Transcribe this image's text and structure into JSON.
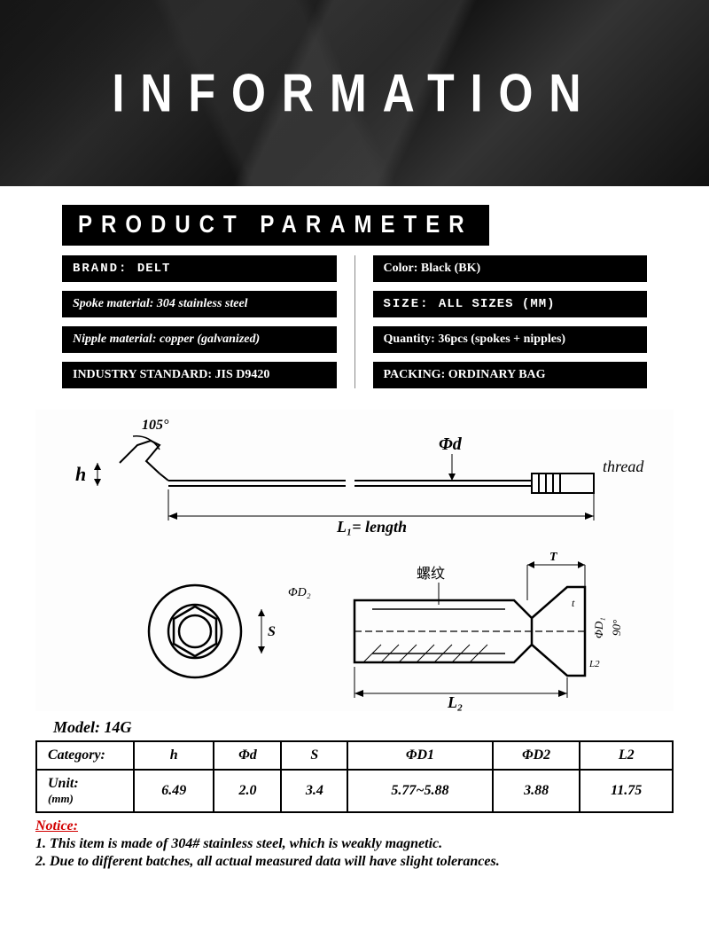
{
  "banner": {
    "title": "INFORMATION"
  },
  "section_title": "PRODUCT PARAMETER",
  "params": {
    "left": [
      {
        "label": "BRAND:",
        "value": "DELT",
        "label_cls": "label-part",
        "val_cls": "val-part"
      },
      {
        "label": "Spoke material:",
        "value": "304 stainless steel",
        "label_cls": "italic",
        "val_cls": "italic"
      },
      {
        "label": "Nipple material:",
        "value": "copper (galvanized)",
        "label_cls": "italic",
        "val_cls": "italic"
      },
      {
        "label": "INDUSTRY STANDARD:",
        "value": "JIS D9420",
        "label_cls": "",
        "val_cls": ""
      }
    ],
    "right": [
      {
        "label": "Color:",
        "value": "Black (BK)",
        "label_cls": "",
        "val_cls": ""
      },
      {
        "label": "SIZE:",
        "value": "ALL SIZES (MM)",
        "label_cls": "label-part",
        "val_cls": "val-part"
      },
      {
        "label": "Quantity:",
        "value": "36pcs (spokes + nipples)",
        "label_cls": "",
        "val_cls": ""
      },
      {
        "label": "PACKING:",
        "value": "ORDINARY BAG",
        "label_cls": "",
        "val_cls": ""
      }
    ]
  },
  "diagram": {
    "angle_label": "105°",
    "h_label": "h",
    "phi_d_label": "Φd",
    "thread_label": "thread",
    "length_label": "L₁= length",
    "thread_cn": "螺纹",
    "s_label": "S",
    "d2_label": "ΦD₂",
    "t_upper": "T",
    "t_lower": "t",
    "d1_label": "ΦD₁",
    "deg90": "90°",
    "l2_label": "L₂",
    "l2_small": "L2"
  },
  "model": "Model: 14G",
  "table": {
    "headers": [
      "Category:",
      "h",
      "Φd",
      "S",
      "ΦD1",
      "ΦD2",
      "L2"
    ],
    "row_label": "Unit: (mm)",
    "values": [
      "6.49",
      "2.0",
      "3.4",
      "5.77~5.88",
      "3.88",
      "11.75"
    ]
  },
  "notice": {
    "title": "Notice:",
    "lines": [
      "1. This item is made of 304# stainless steel, which is weakly magnetic.",
      "2. Due to different batches, all actual measured data will have slight tolerances."
    ]
  },
  "colors": {
    "bg": "#ffffff",
    "black": "#000000",
    "notice_red": "#d20000"
  }
}
